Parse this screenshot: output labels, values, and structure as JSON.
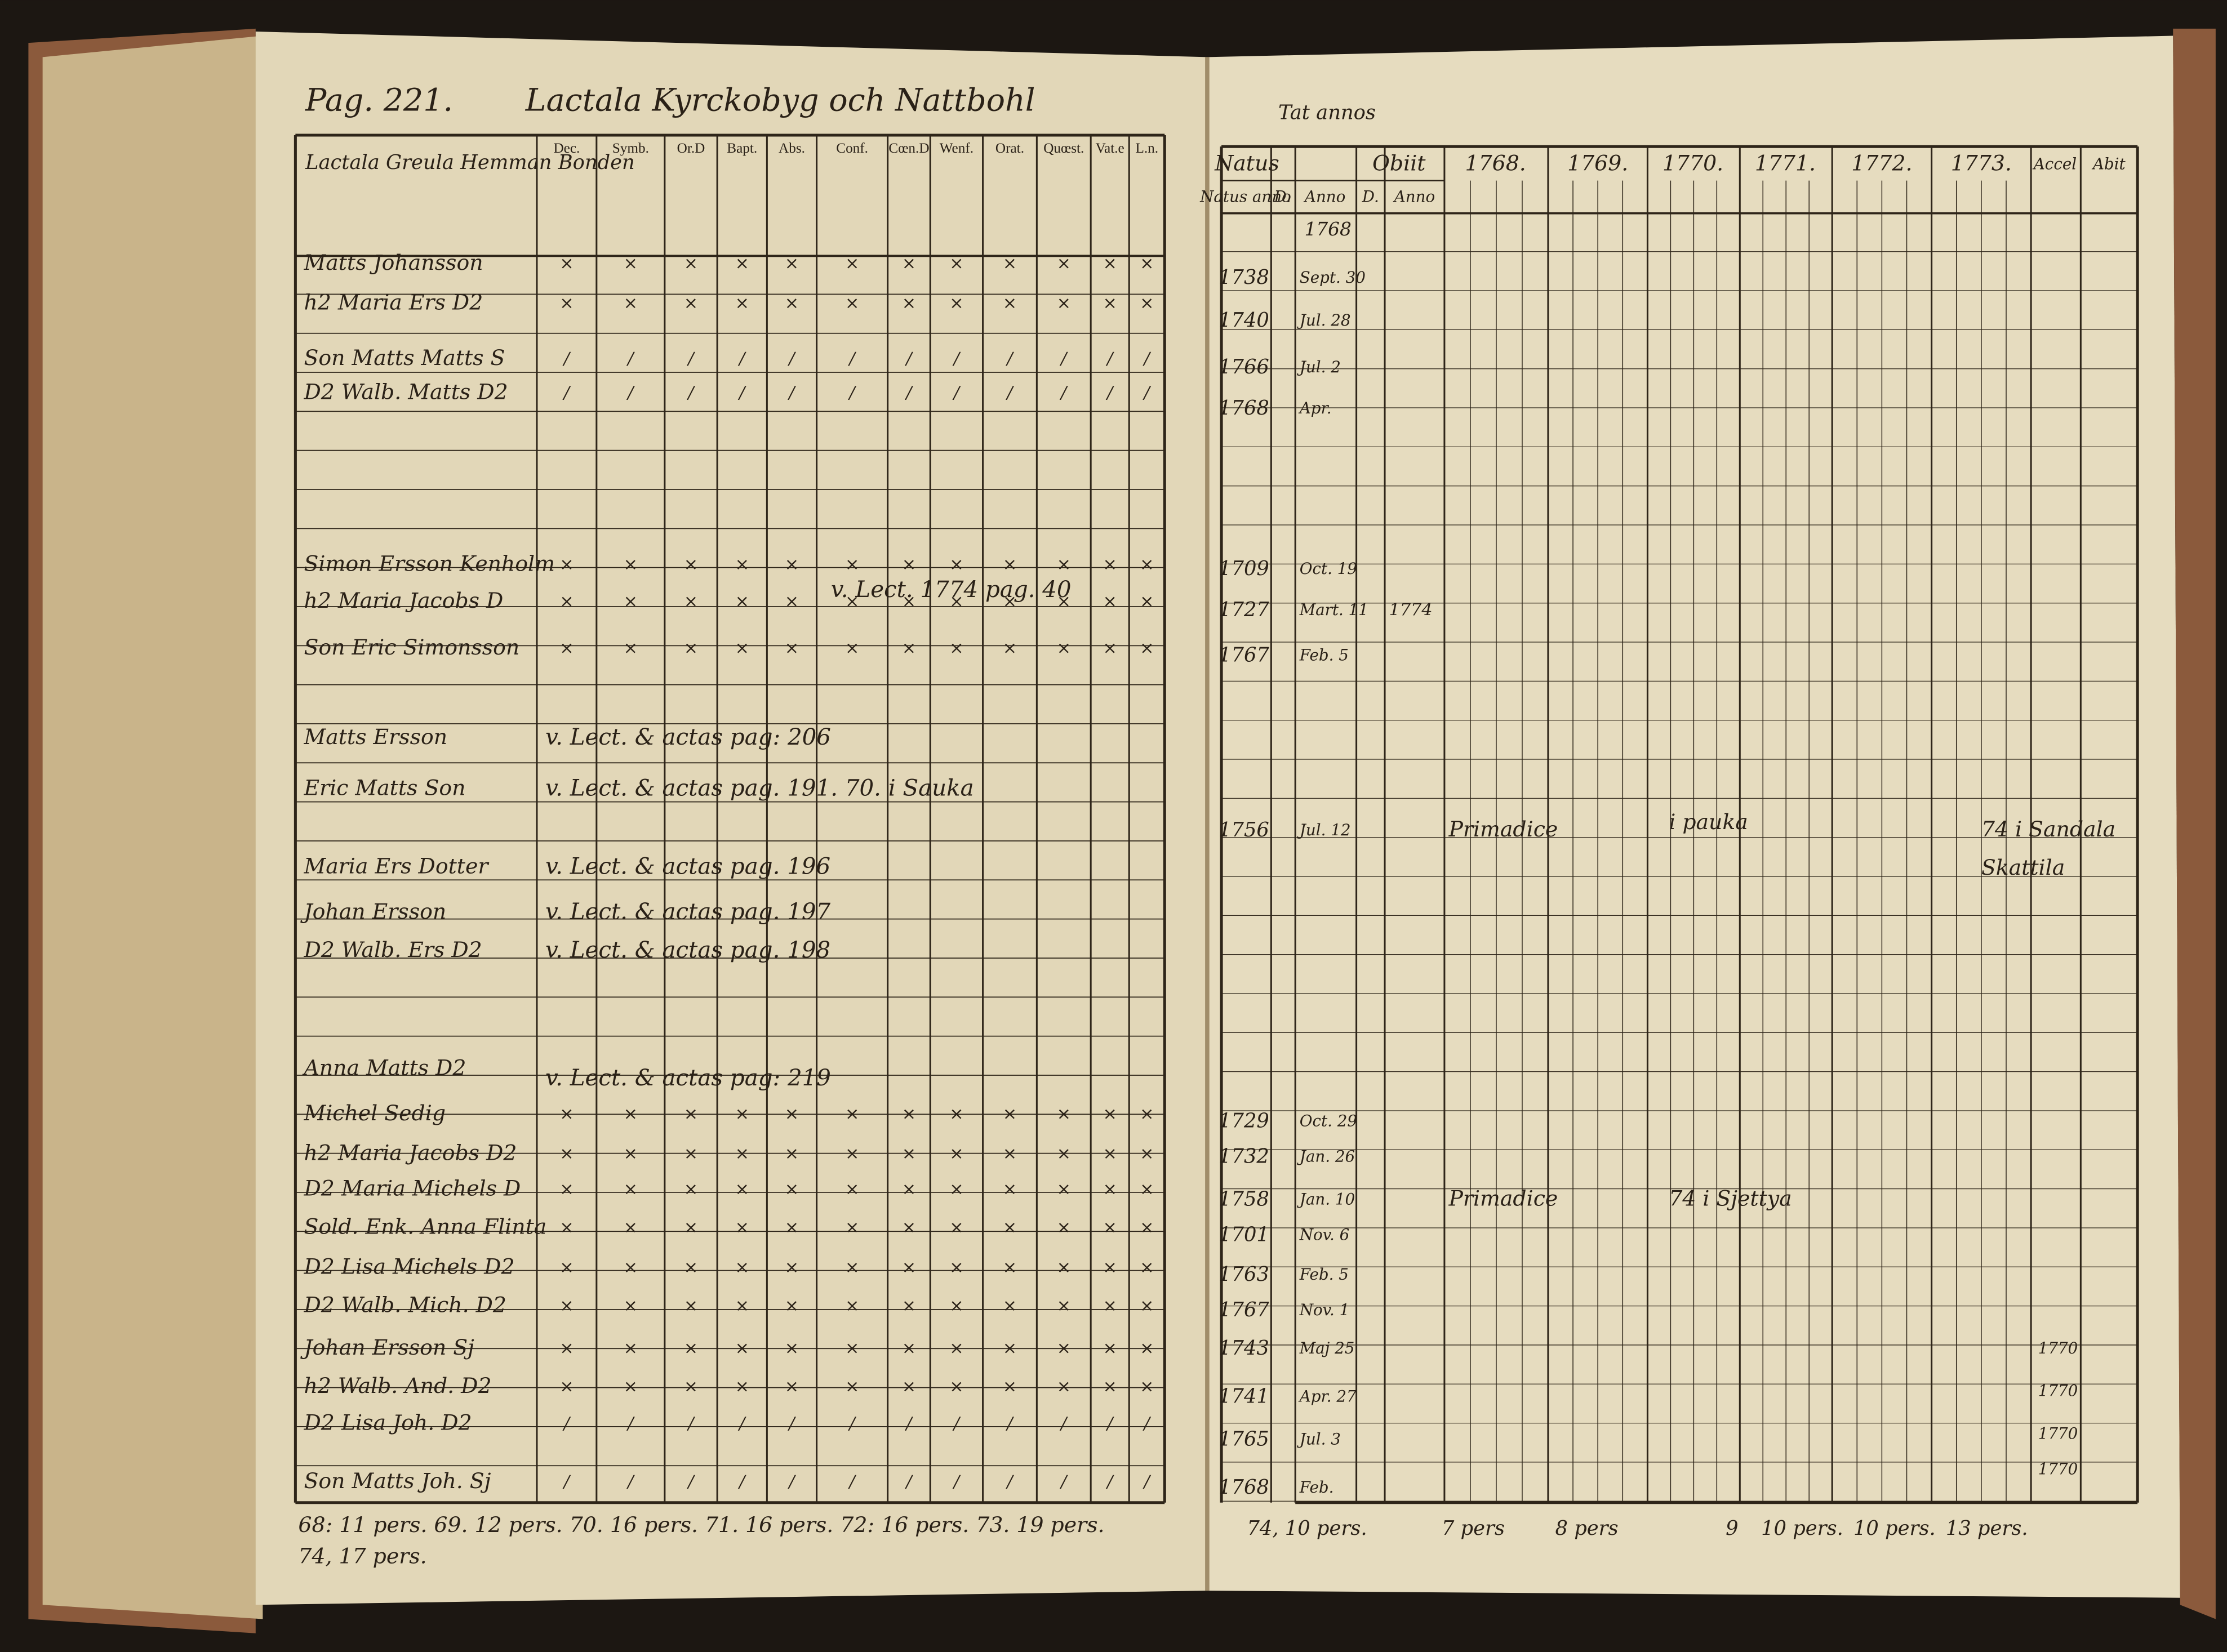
{
  "left_page": {
    "page_number": "Pag. 221.",
    "heading": "Lactala Kyrckobyg och Nattbohl",
    "columns": [
      "Lactala Greula Hemman Bonden",
      "Dec.",
      "Symb.",
      "Or.D",
      "Bapt.",
      "Abs.",
      "Conf.",
      "Cœn.D",
      "Wenf.",
      "Orat.",
      "Quœst.",
      "Vat.e",
      "L.n."
    ],
    "rows": [
      "Matts Johansson",
      "h2 Maria Ers D2",
      "Son Matts Matts S",
      "D2 Walb. Matts D2",
      "Simon Ersson Kenholm",
      "h2 Maria Jacobs D",
      "Son Eric Simonsson",
      "Matts Ersson",
      "Eric Matts Son",
      "Maria Ers Dotter",
      "Johan Ersson",
      "D2 Walb. Ers D2",
      "Anna Matts D2",
      "Michel Sedig",
      "h2 Maria Jacobs D2",
      "D2 Maria Michels D",
      "Sold. Enk. Anna Flinta",
      "D2 Lisa Michels D2",
      "D2 Walb. Mich. D2",
      "Johan Ersson Sj",
      "h2 Walb. And. D2",
      "D2 Lisa Joh. D2",
      "Son Matts Joh. Sj"
    ],
    "notes": [
      "v. Lect. & actas pag: 206",
      "v. Lect. & actas pag. 191. 70. i Sauka",
      "v. Lect. & actas pag. 196",
      "v. Lect. & actas pag. 197",
      "v. Lect. & actas pag. 198",
      "v. Lect. & actas pag: 219",
      "v. Lect. 1774 pag. 40"
    ],
    "footer": [
      "68: 11 pers. 69. 12 pers. 70. 16 pers. 71. 16 pers. 72: 16 pers. 73. 19 pers.",
      "74, 17 pers."
    ]
  },
  "right_page": {
    "heading": "Tat annos",
    "columns": [
      "Natus",
      "Obiit",
      "1768.",
      "1769.",
      "1770.",
      "1771.",
      "1772.",
      "1773.",
      "Accel",
      "Abit"
    ],
    "subcolumns": [
      "Natus anno",
      "D.",
      "Anno",
      "D.",
      "Anno"
    ],
    "anno_first": "1768",
    "entries": [
      {
        "year": "1738",
        "date": "Sept. 30"
      },
      {
        "year": "1740",
        "date": "Jul. 28"
      },
      {
        "year": "1766",
        "date": "Jul. 2"
      },
      {
        "year": "1768",
        "date": "Apr."
      },
      {
        "year": "1709",
        "date": "Oct. 19"
      },
      {
        "year": "1727",
        "date": "Mart. 11",
        "obiit": "1774"
      },
      {
        "year": "1767",
        "date": "Feb. 5"
      },
      {
        "year": "1756",
        "date": "Jul. 12"
      },
      {
        "year": "1729",
        "date": "Oct. 29"
      },
      {
        "year": "1732",
        "date": "Jan. 26"
      },
      {
        "year": "1758",
        "date": "Jan. 10"
      },
      {
        "year": "1701",
        "date": "Nov. 6"
      },
      {
        "year": "1763",
        "date": "Feb. 5"
      },
      {
        "year": "1767",
        "date": "Nov. 1"
      },
      {
        "year": "1743",
        "date": "Maj 25"
      },
      {
        "year": "1741",
        "date": "Apr. 27"
      },
      {
        "year": "1765",
        "date": "Jul. 3"
      },
      {
        "year": "1768",
        "date": "Feb."
      }
    ],
    "notes": [
      "Primadice",
      "i pauka",
      "74 i Sandala",
      "Skattila",
      "Primadice",
      "74 i Sjettya",
      "1770",
      "1770",
      "1770",
      "1770"
    ],
    "footer": [
      "74, 10 pers.",
      "7 pers",
      "8 pers",
      "9",
      "10 pers.",
      "10 pers.",
      "13 pers."
    ]
  }
}
